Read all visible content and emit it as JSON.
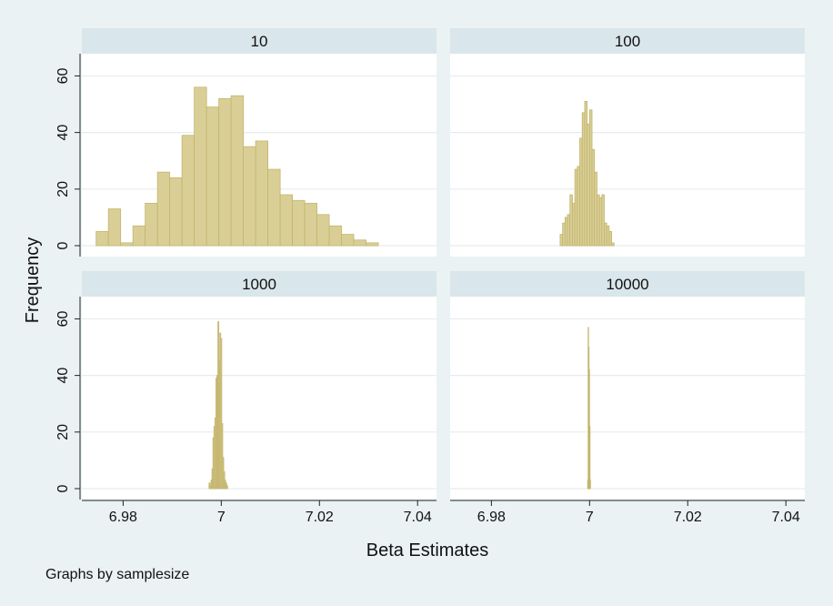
{
  "chart_data": {
    "type": "histogram",
    "xlabel": "Beta Estimates",
    "ylabel": "Frequency",
    "note": "Graphs by samplesize",
    "xlim": [
      6.974,
      7.042
    ],
    "ylim": [
      0,
      64
    ],
    "xticks": [
      6.98,
      7,
      7.02,
      7.04
    ],
    "xtick_labels": [
      "6.98",
      "7",
      "7.02",
      "7.04"
    ],
    "yticks": [
      0,
      20,
      40,
      60
    ],
    "grid": true,
    "colors": {
      "background": "#eaf2f3",
      "panel": "#ffffff",
      "strip": "#d9e6eb",
      "bar_fill": "#d9cf96",
      "bar_edge": "#c3b56e",
      "grid": "#e6ecee"
    },
    "panels": [
      {
        "title": "10",
        "bin_start": 6.9745,
        "bin_width": 0.0025,
        "counts": [
          5,
          13,
          1,
          7,
          15,
          26,
          24,
          39,
          56,
          49,
          52,
          53,
          35,
          37,
          27,
          18,
          16,
          15,
          11,
          7,
          4,
          2,
          1
        ]
      },
      {
        "title": "100",
        "bin_start": 6.994,
        "bin_width": 0.0005,
        "counts": [
          4,
          8,
          10,
          11,
          18,
          15,
          27,
          28,
          38,
          47,
          51,
          43,
          48,
          34,
          26,
          18,
          17,
          18,
          8,
          7,
          5,
          1
        ]
      },
      {
        "title": "1000",
        "bin_start": 6.9975,
        "bin_width": 0.0002,
        "counts": [
          2,
          1,
          3,
          7,
          18,
          22,
          25,
          39,
          40,
          59,
          45,
          55,
          53,
          23,
          11,
          6,
          3,
          2,
          1
        ]
      },
      {
        "title": "10000",
        "bin_start": 6.9996,
        "bin_width": 0.0001,
        "counts": [
          3,
          57,
          50,
          42,
          22,
          3
        ]
      }
    ]
  }
}
